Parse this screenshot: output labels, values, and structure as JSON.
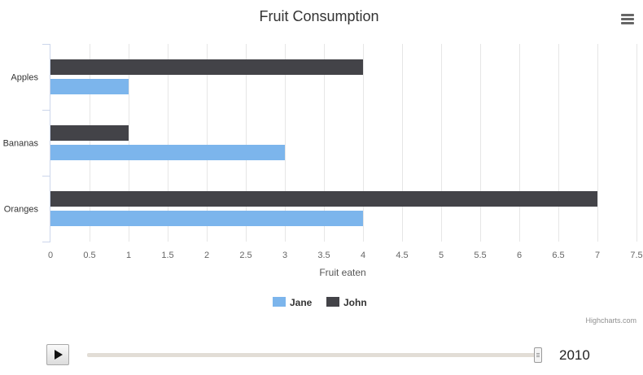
{
  "chart_data": {
    "type": "bar",
    "orientation": "horizontal",
    "title": "Fruit Consumption",
    "xlabel": "Fruit eaten",
    "ylabel": "",
    "categories": [
      "Apples",
      "Bananas",
      "Oranges"
    ],
    "series": [
      {
        "name": "John",
        "values": [
          4,
          1,
          7
        ],
        "color": "#434348"
      },
      {
        "name": "Jane",
        "values": [
          1,
          3,
          4
        ],
        "color": "#7cb5ec"
      }
    ],
    "xlim": [
      0,
      7.5
    ],
    "ticks": [
      "0",
      "0.5",
      "1",
      "1.5",
      "2",
      "2.5",
      "3",
      "3.5",
      "4",
      "4.5",
      "5",
      "5.5",
      "6",
      "6.5",
      "7",
      "7.5"
    ],
    "grid": true,
    "legend": {
      "position": "bottom-center",
      "items": [
        {
          "name": "Jane",
          "color": "#7cb5ec"
        },
        {
          "name": "John",
          "color": "#434348"
        }
      ]
    },
    "credits": "Highcharts.com"
  },
  "controls": {
    "play_icon": "play-icon",
    "menu_icon": "hamburger-menu-icon",
    "year": "2010",
    "slider_value": 1.0
  }
}
